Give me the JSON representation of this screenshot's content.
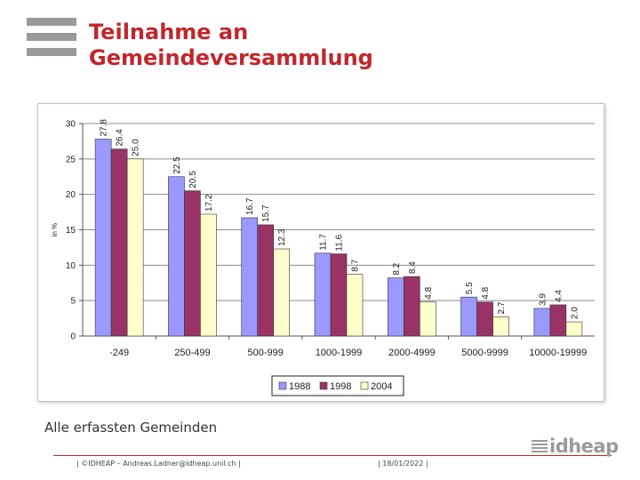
{
  "header": {
    "title_line1": "Teilnahme an",
    "title_line2": "Gemeindeversammlung"
  },
  "caption": "Alle erfassten Gemeinden",
  "footer": {
    "left": "| ©IDHEAP – Andreas.Ladner@idheap.unil.ch |",
    "date": "| 18/01/2022 |",
    "brand": "idheap"
  },
  "chart_data": {
    "type": "bar",
    "title": "",
    "xlabel": "",
    "ylabel": "in %",
    "ylim": [
      0,
      30
    ],
    "yticks": [
      0,
      5,
      10,
      15,
      20,
      25,
      30
    ],
    "grid": true,
    "legend_position": "bottom",
    "categories": [
      "-249",
      "250-499",
      "500-999",
      "1000-1999",
      "2000-4999",
      "5000-9999",
      "10000-19999"
    ],
    "series": [
      {
        "name": "1988",
        "color": "#9999ff",
        "values": [
          27.8,
          22.5,
          16.7,
          11.7,
          8.2,
          5.5,
          3.9
        ],
        "labels": [
          "27.8",
          "22.5",
          "16.7",
          "11.7",
          "8.2",
          "5.5",
          "3.9"
        ]
      },
      {
        "name": "1998",
        "color": "#993366",
        "values": [
          26.4,
          20.5,
          15.7,
          11.6,
          8.4,
          4.8,
          4.4
        ],
        "labels": [
          "26.4",
          "20.5",
          "15.7",
          "11.6",
          "8.4",
          "4.8",
          "4.4"
        ]
      },
      {
        "name": "2004",
        "color": "#ffffcc",
        "values": [
          25.0,
          17.2,
          12.3,
          8.7,
          4.8,
          2.7,
          2.0
        ],
        "labels": [
          "25.0",
          "17.2",
          "12.3",
          "8.7",
          "4.8",
          "2.7",
          "2.0"
        ]
      }
    ]
  }
}
